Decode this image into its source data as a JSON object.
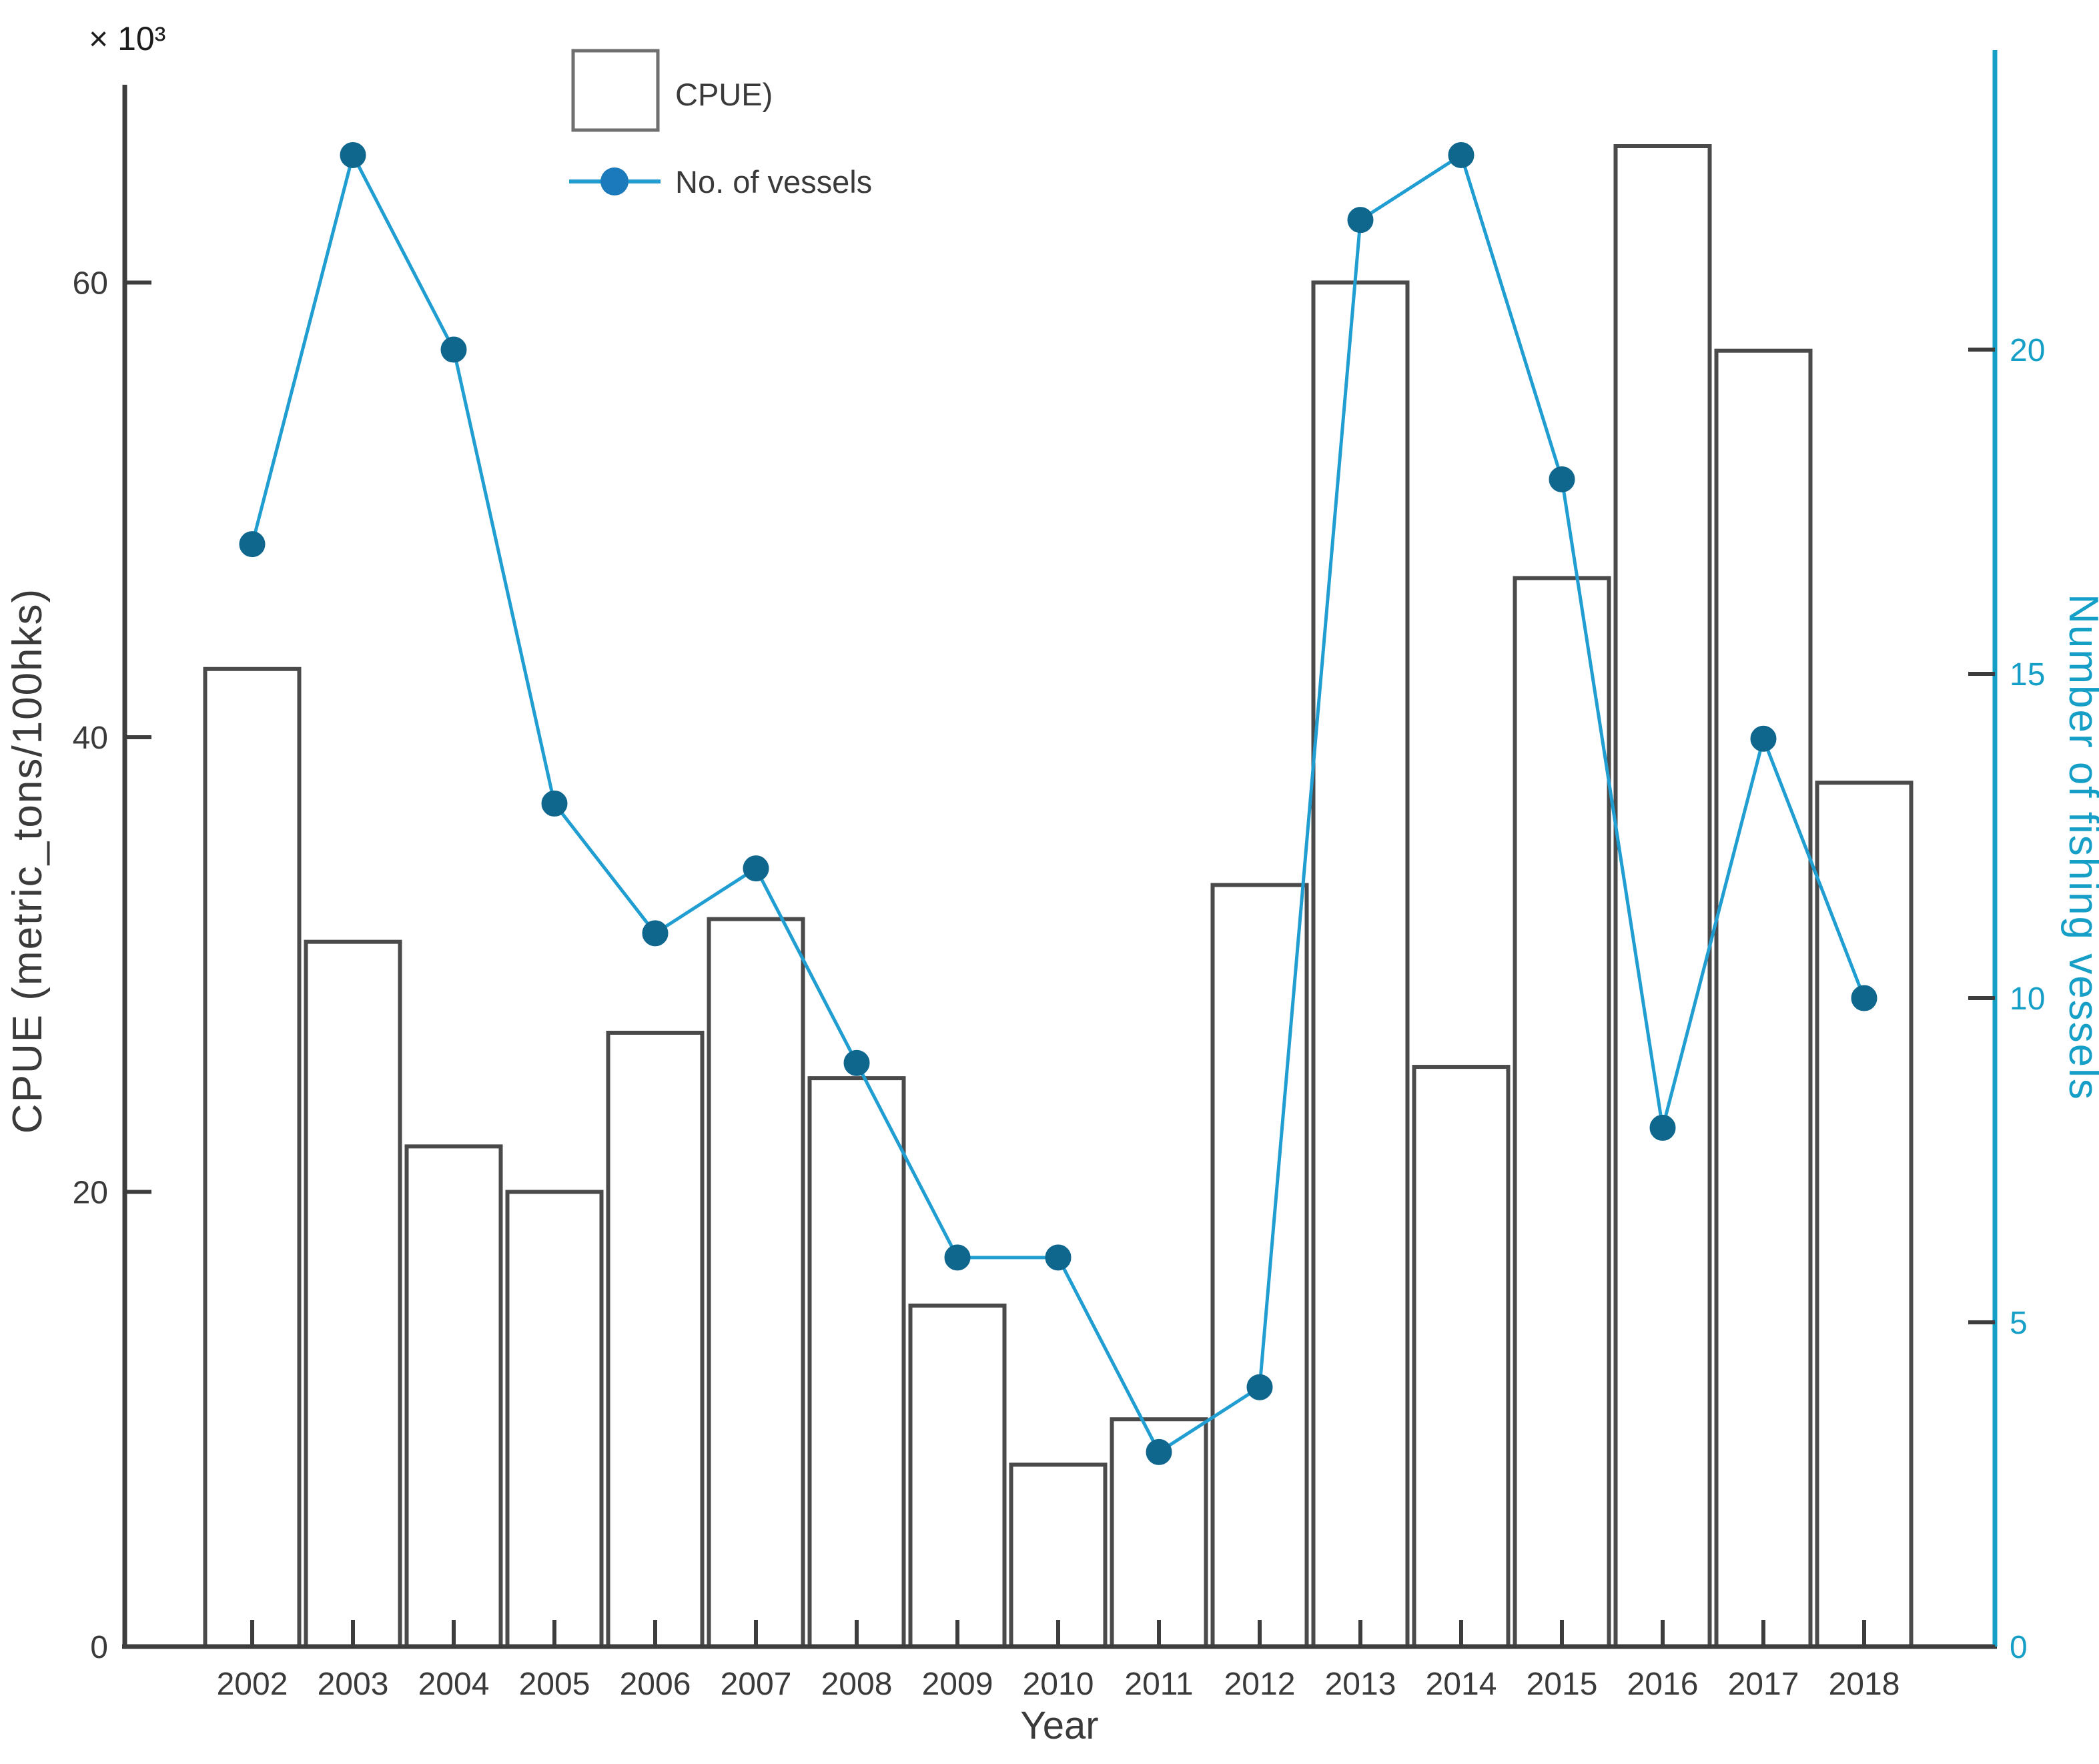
{
  "chart_data": {
    "type": "bar+line",
    "title": "",
    "xlabel": "Year",
    "ylabel_left": "CPUE (metric_tons/100hks)",
    "left_axis_multiplier": "× 10³",
    "ylabel_right": "Number of fishing vessels",
    "categories": [
      "2002",
      "2003",
      "2004",
      "2005",
      "2006",
      "2007",
      "2008",
      "2009",
      "2010",
      "2011",
      "2012",
      "2013",
      "2014",
      "2015",
      "2016",
      "2017",
      "2018"
    ],
    "series": [
      {
        "name": "CPUE)",
        "type": "bar",
        "axis": "left",
        "values": [
          43,
          31,
          22,
          20,
          27,
          32,
          25,
          15,
          8,
          10,
          33.5,
          60,
          25.5,
          47,
          66,
          57,
          38
        ]
      },
      {
        "name": "No. of vessels",
        "type": "line",
        "axis": "right",
        "values": [
          17,
          23,
          20,
          13,
          11,
          12,
          9,
          6,
          6,
          3,
          4,
          22,
          23,
          18,
          8,
          14,
          10
        ]
      }
    ],
    "left_ticks": [
      0,
      20,
      40,
      60
    ],
    "right_ticks": [
      0,
      5,
      10,
      15,
      20
    ],
    "ylim_left": [
      0,
      68.7
    ],
    "ylim_right": [
      0,
      24.62
    ],
    "grid": false,
    "legend_position": "upper-left-inside"
  },
  "colors": {
    "bar_fill": "#ffffff",
    "bar_edge": "#4a4a4a",
    "axis": "#3d3d3d",
    "line": "#219ed1",
    "marker": "#10678e",
    "right_axis": "#169fc6",
    "legend_box_edge": "#6f6f6f",
    "text": "#3a3a3a"
  }
}
